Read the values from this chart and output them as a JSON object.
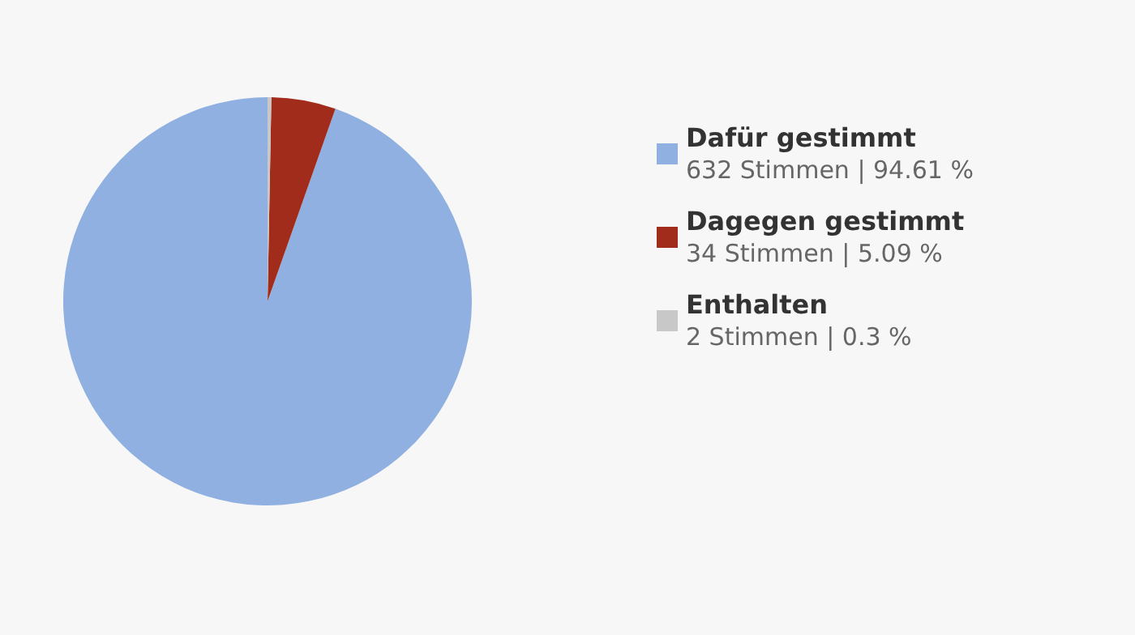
{
  "chart_data": {
    "type": "pie",
    "categories": [
      "Dafür gestimmt",
      "Dagegen gestimmt",
      "Enthalten"
    ],
    "values": [
      632,
      34,
      2
    ],
    "colors": [
      "#8fb0e0",
      "#a22c1c",
      "#c8c8c8"
    ],
    "value_labels": [
      "632 Stimmen | 94.61 %",
      "34 Stimmen | 5.09 %",
      "2 Stimmen | 0.3 %"
    ],
    "legend": "right"
  }
}
